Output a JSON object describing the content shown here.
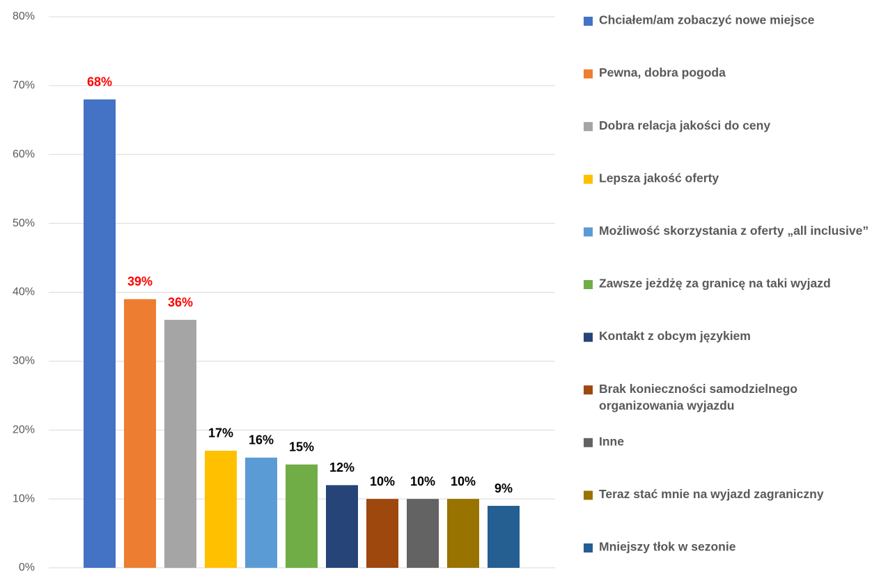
{
  "chart_data": {
    "type": "bar",
    "ylim": [
      0,
      80
    ],
    "yticks": [
      {
        "value": 0,
        "label": "0%"
      },
      {
        "value": 10,
        "label": "10%"
      },
      {
        "value": 20,
        "label": "20%"
      },
      {
        "value": 30,
        "label": "30%"
      },
      {
        "value": 40,
        "label": "40%"
      },
      {
        "value": 50,
        "label": "50%"
      },
      {
        "value": 60,
        "label": "60%"
      },
      {
        "value": 70,
        "label": "70%"
      },
      {
        "value": 80,
        "label": "80%"
      }
    ],
    "grid": true,
    "legend": "right",
    "series": [
      {
        "name": "Chciałem/am zobaczyć nowe miejsce",
        "color": "#4472c4",
        "label_color": "#ff0000",
        "values": [
          68
        ],
        "value_labels": [
          "68%"
        ]
      },
      {
        "name": "Pewna, dobra pogoda",
        "color": "#ed7d31",
        "label_color": "#ff0000",
        "values": [
          39
        ],
        "value_labels": [
          "39%"
        ]
      },
      {
        "name": "Dobra relacja jakości do ceny",
        "color": "#a5a5a5",
        "label_color": "#ff0000",
        "values": [
          36
        ],
        "value_labels": [
          "36%"
        ]
      },
      {
        "name": "Lepsza jakość oferty",
        "color": "#ffc000",
        "label_color": "#000000",
        "values": [
          17
        ],
        "value_labels": [
          "17%"
        ]
      },
      {
        "name": "Możliwość skorzystania z oferty „all inclusive”",
        "color": "#5b9bd5",
        "label_color": "#000000",
        "values": [
          16
        ],
        "value_labels": [
          "16%"
        ]
      },
      {
        "name": "Zawsze jeżdżę za granicę na taki wyjazd",
        "color": "#70ad47",
        "label_color": "#000000",
        "values": [
          15
        ],
        "value_labels": [
          "15%"
        ]
      },
      {
        "name": "Kontakt z obcym językiem",
        "color": "#264478",
        "label_color": "#000000",
        "values": [
          12
        ],
        "value_labels": [
          "12%"
        ]
      },
      {
        "name": "Brak konieczności samodzielnego organizowania wyjazdu",
        "color": "#9e480e",
        "label_color": "#000000",
        "values": [
          10
        ],
        "value_labels": [
          "10%"
        ]
      },
      {
        "name": "Inne",
        "color": "#636363",
        "label_color": "#000000",
        "values": [
          10
        ],
        "value_labels": [
          "10%"
        ]
      },
      {
        "name": "Teraz stać mnie na wyjazd zagraniczny",
        "color": "#997300",
        "label_color": "#000000",
        "values": [
          10
        ],
        "value_labels": [
          "10%"
        ]
      },
      {
        "name": "Mniejszy tłok w sezonie",
        "color": "#255e91",
        "label_color": "#000000",
        "values": [
          9
        ],
        "value_labels": [
          "9%"
        ]
      }
    ]
  }
}
